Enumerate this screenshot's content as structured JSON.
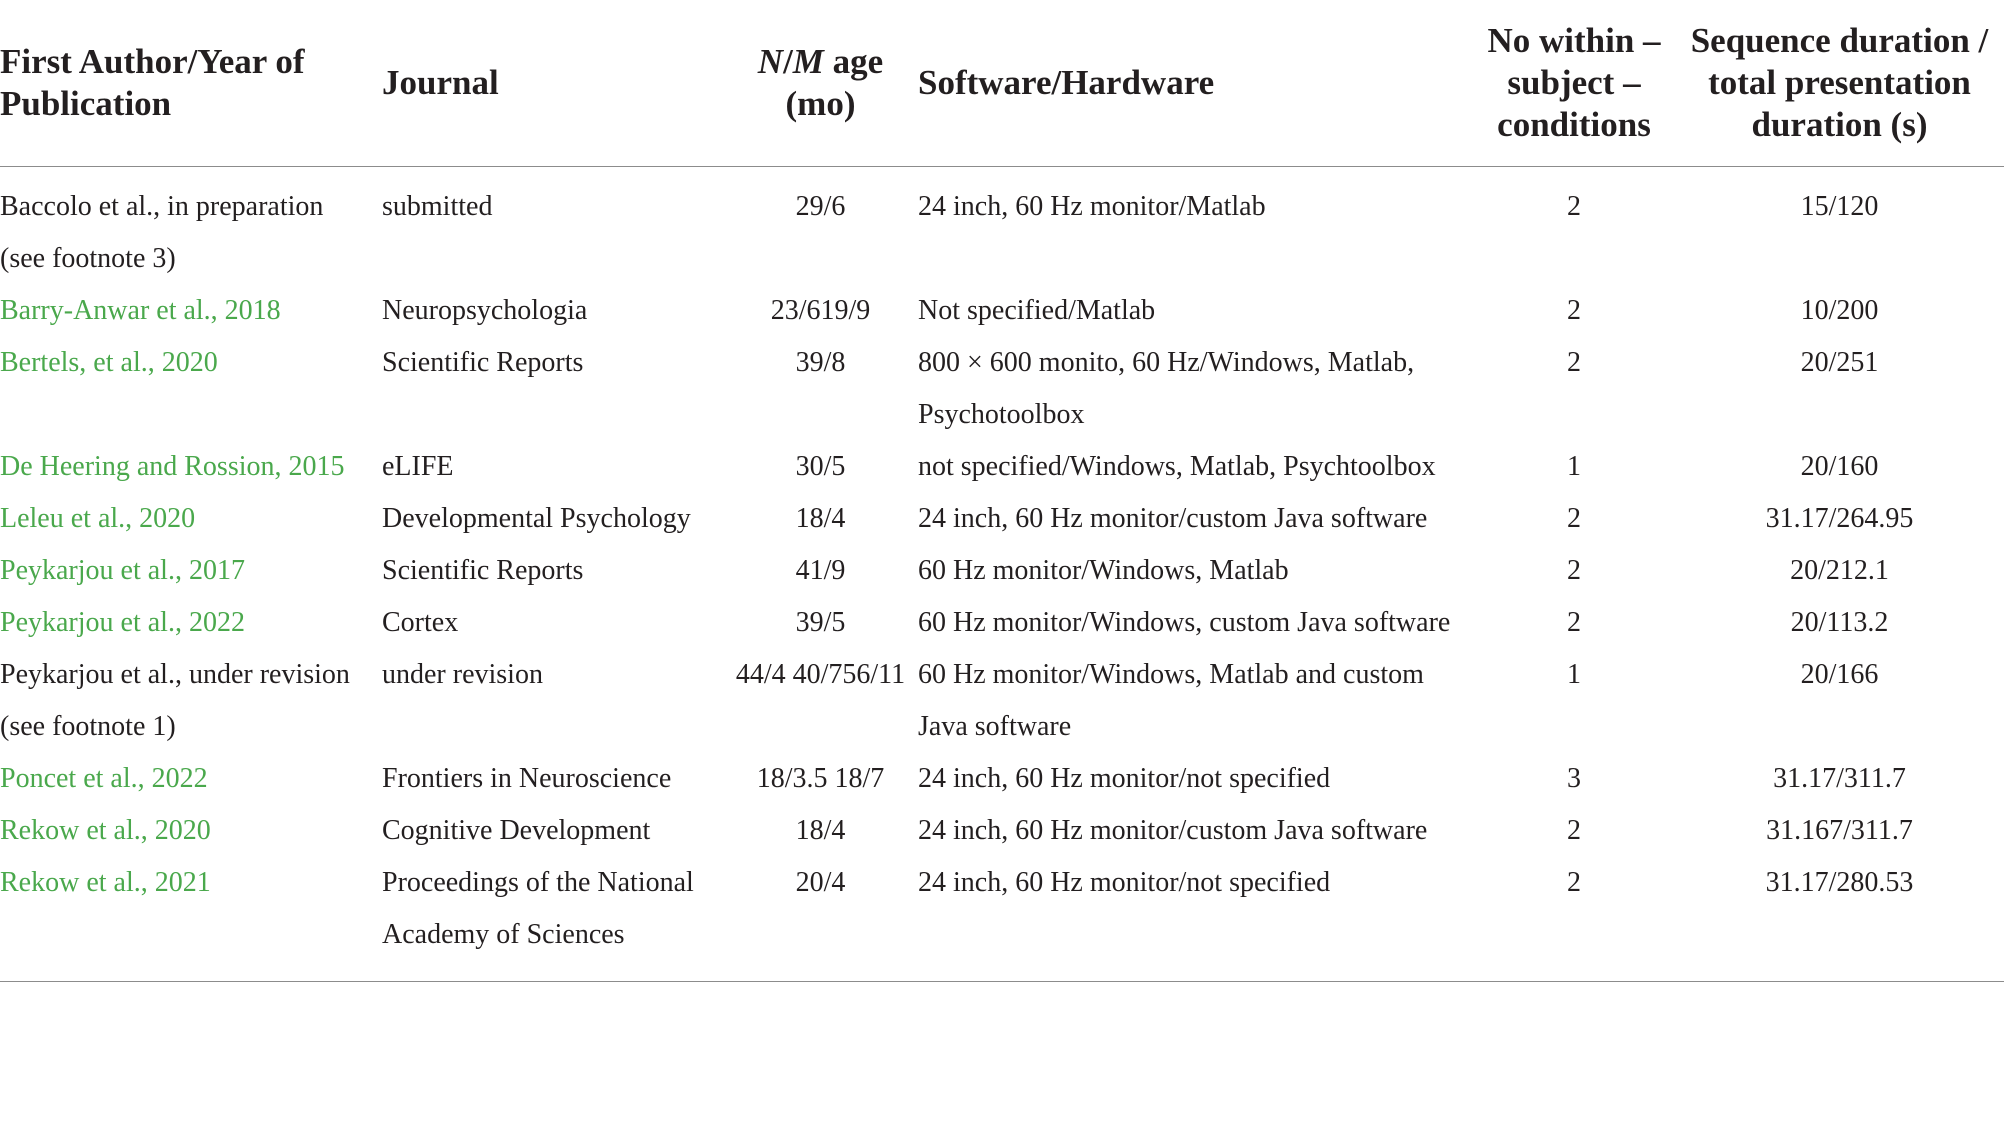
{
  "table": {
    "headers": {
      "author": "First Author/Year of Publication",
      "journal": "Journal",
      "n_italic": "N",
      "n_sep": "/",
      "m_italic": "M",
      "age_rest": " age (mo)",
      "conditions": "No within – subject – conditions",
      "duration": "Sequence duration / total presentation duration (s)",
      "software": "Software/Hardware"
    },
    "rows": [
      {
        "author": "Baccolo et al., in preparation (see footnote 3)",
        "author_is_link": false,
        "journal": "submitted",
        "n_age": "29/6",
        "software": "24 inch, 60 Hz monitor/Matlab",
        "conditions": "2",
        "duration": "15/120"
      },
      {
        "author": "Barry-Anwar et al., 2018",
        "author_is_link": true,
        "journal": "Neuropsychologia",
        "n_age": "23/619/9",
        "software": "Not specified/Matlab",
        "conditions": "2",
        "duration": "10/200"
      },
      {
        "author": "Bertels, et al., 2020",
        "author_is_link": true,
        "journal": "Scientific Reports",
        "n_age": "39/8",
        "software": "800 × 600 monito, 60 Hz/Windows, Matlab, Psychotoolbox",
        "conditions": "2",
        "duration": "20/251"
      },
      {
        "author": "De Heering and Rossion, 2015",
        "author_is_link": true,
        "journal": "eLIFE",
        "n_age": "30/5",
        "software": "not specified/Windows, Matlab, Psychtoolbox",
        "conditions": "1",
        "duration": "20/160"
      },
      {
        "author": "Leleu et al., 2020",
        "author_is_link": true,
        "journal": "Developmental Psychology",
        "n_age": "18/4",
        "software": "24 inch, 60 Hz monitor/custom Java software",
        "conditions": "2",
        "duration": "31.17/264.95"
      },
      {
        "author": "Peykarjou et al., 2017",
        "author_is_link": true,
        "journal": "Scientific Reports",
        "n_age": "41/9",
        "software": "60 Hz monitor/Windows, Matlab",
        "conditions": "2",
        "duration": "20/212.1"
      },
      {
        "author": "Peykarjou et al., 2022",
        "author_is_link": true,
        "journal": "Cortex",
        "n_age": "39/5",
        "software": "60 Hz monitor/Windows, custom Java software",
        "conditions": "2",
        "duration": "20/113.2"
      },
      {
        "author": "Peykarjou et al., under revision (see footnote 1)",
        "author_is_link": false,
        "journal": "under revision",
        "n_age": "44/4 40/756/11",
        "software": "60 Hz monitor/Windows, Matlab and custom Java software",
        "conditions": "1",
        "duration": "20/166"
      },
      {
        "author": "Poncet et al., 2022",
        "author_is_link": true,
        "journal": "Frontiers in Neuroscience",
        "n_age": "18/3.5 18/7",
        "software": "24 inch, 60 Hz monitor/not specified",
        "conditions": "3",
        "duration": "31.17/311.7"
      },
      {
        "author": "Rekow et al., 2020",
        "author_is_link": true,
        "journal": "Cognitive Development",
        "n_age": "18/4",
        "software": "24 inch, 60 Hz monitor/custom Java software",
        "conditions": "2",
        "duration": "31.167/311.7"
      },
      {
        "author": "Rekow et al., 2021",
        "author_is_link": true,
        "journal": "Proceedings of the National Academy of Sciences",
        "n_age": "20/4",
        "software": "24 inch, 60 Hz monitor/not specified",
        "conditions": "2",
        "duration": "31.17/280.53"
      }
    ],
    "colors": {
      "link": "#4aa84c",
      "text": "#231f20",
      "rule": "#8c8c8c"
    }
  }
}
